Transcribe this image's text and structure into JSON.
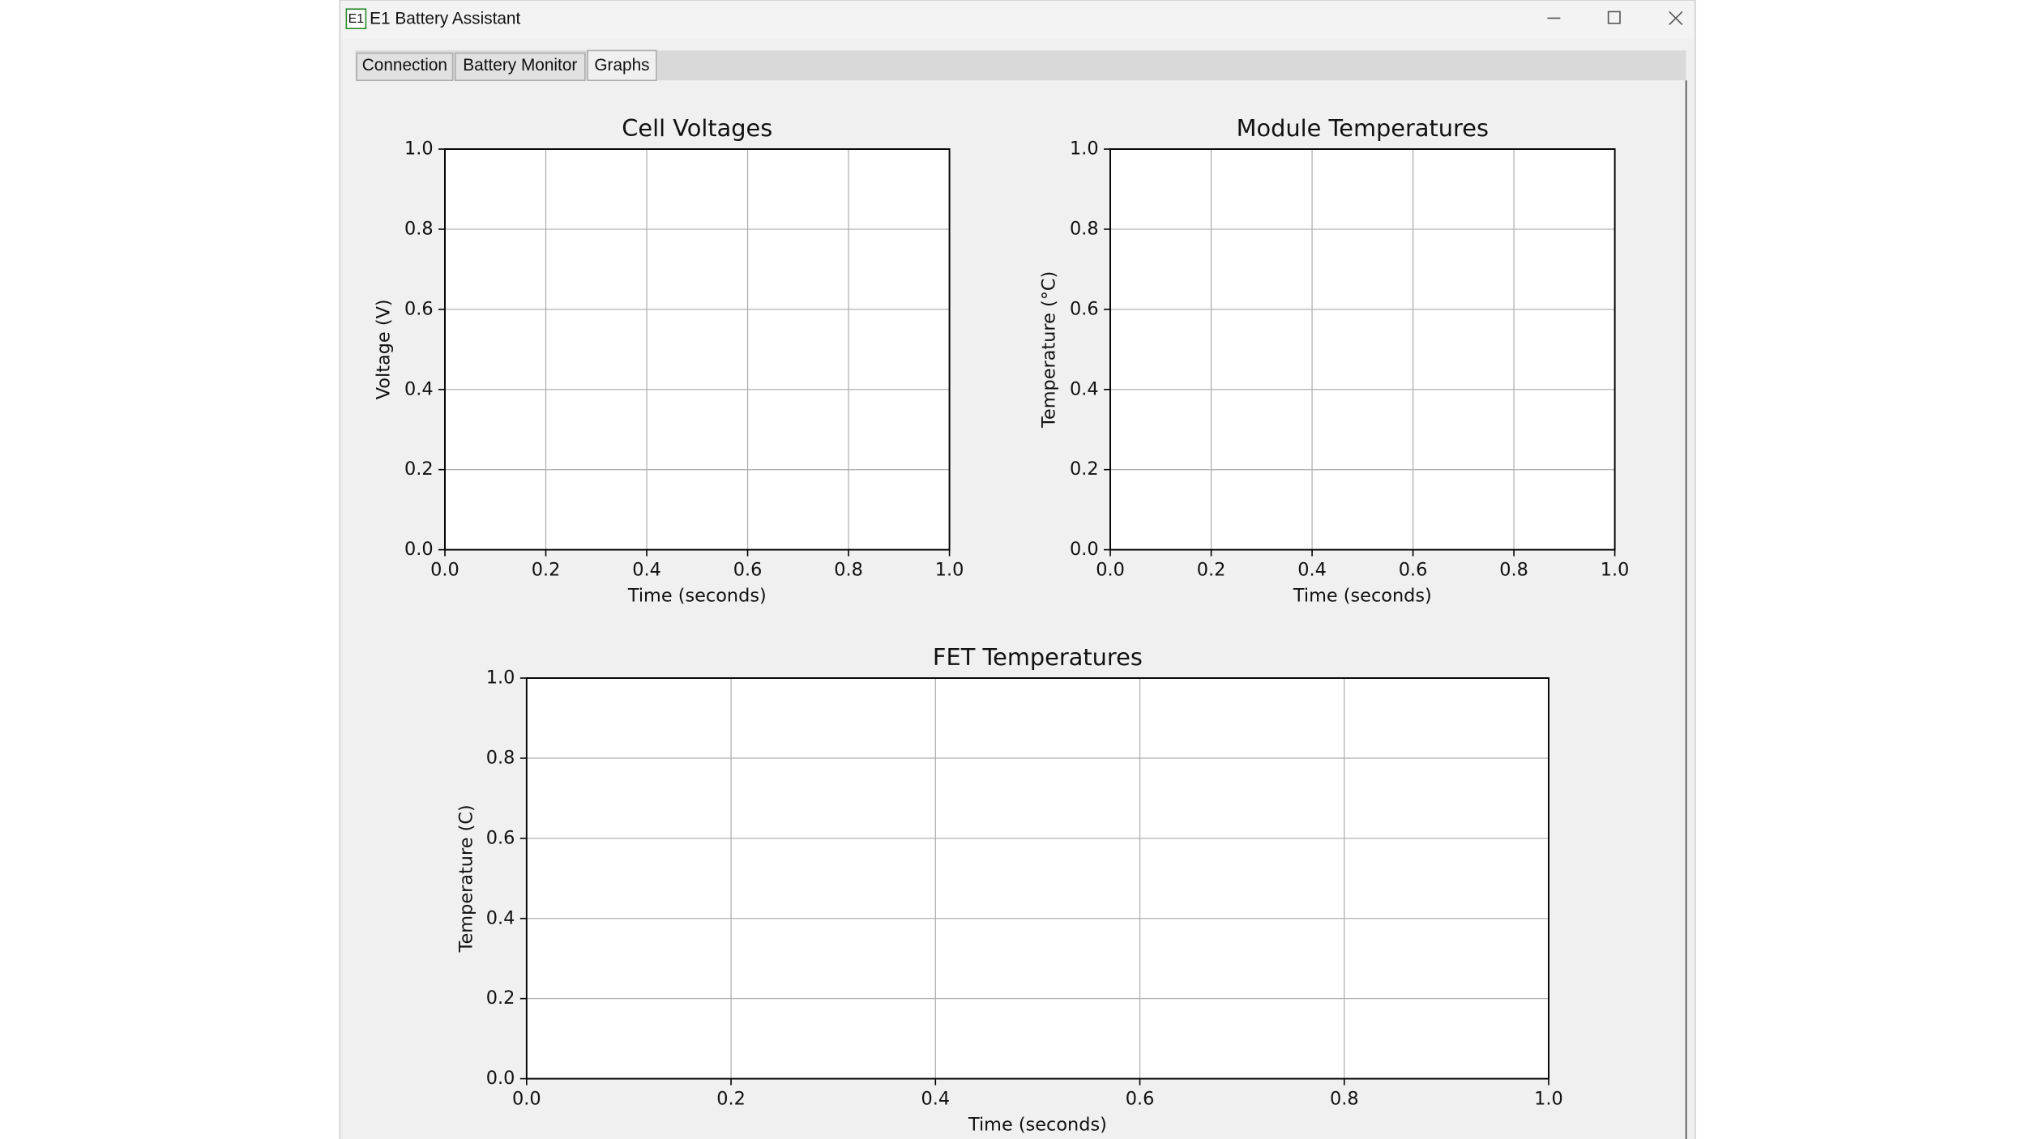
{
  "window": {
    "title": "E1 Battery Assistant",
    "icon": "E1"
  },
  "tabs": [
    "Connection",
    "Battery Monitor",
    "Graphs"
  ],
  "selected_tab": 2,
  "chart_data": [
    {
      "type": "line",
      "title": "Cell Voltages",
      "x_label": "Time (seconds)",
      "y_label": "Voltage (V)",
      "series": [],
      "xlim": [
        0,
        1
      ],
      "ylim": [
        0,
        1
      ],
      "xticks": [
        {
          "value": 0,
          "label": "0.0"
        },
        0.2,
        0.4,
        0.6,
        0.8,
        {
          "value": 1,
          "label": "1.0"
        }
      ],
      "yticks": [
        {
          "value": 0,
          "label": "0.0"
        },
        0.2,
        0.4,
        0.6,
        0.8,
        {
          "value": 1,
          "label": "1.0"
        }
      ],
      "grid": true
    },
    {
      "type": "line",
      "title": "Module Temperatures",
      "x_label": "Time (seconds)",
      "y_label": "Temperature (°C)",
      "series": [],
      "xlim": [
        0,
        1
      ],
      "ylim": [
        0,
        1
      ],
      "xticks": [
        {
          "value": 0,
          "label": "0.0"
        },
        0.2,
        0.4,
        0.6,
        0.8,
        {
          "value": 1,
          "label": "1.0"
        }
      ],
      "yticks": [
        {
          "value": 0,
          "label": "0.0"
        },
        0.2,
        0.4,
        0.6,
        0.8,
        {
          "value": 1,
          "label": "1.0"
        }
      ],
      "grid": true
    },
    {
      "type": "line",
      "title": "FET Temperatures",
      "x_label": "Time (seconds)",
      "y_label": "Temperature (C)",
      "series": [],
      "xlim": [
        0,
        1
      ],
      "ylim": [
        0,
        1
      ],
      "xticks": [
        {
          "value": 0,
          "label": "0.0"
        },
        0.2,
        0.4,
        0.6,
        0.8,
        {
          "value": 1,
          "label": "1.0"
        }
      ],
      "yticks": [
        {
          "value": 0,
          "label": "0.0"
        },
        0.2,
        0.4,
        0.6,
        0.8,
        {
          "value": 1,
          "label": "1.0"
        }
      ],
      "grid": true
    }
  ]
}
